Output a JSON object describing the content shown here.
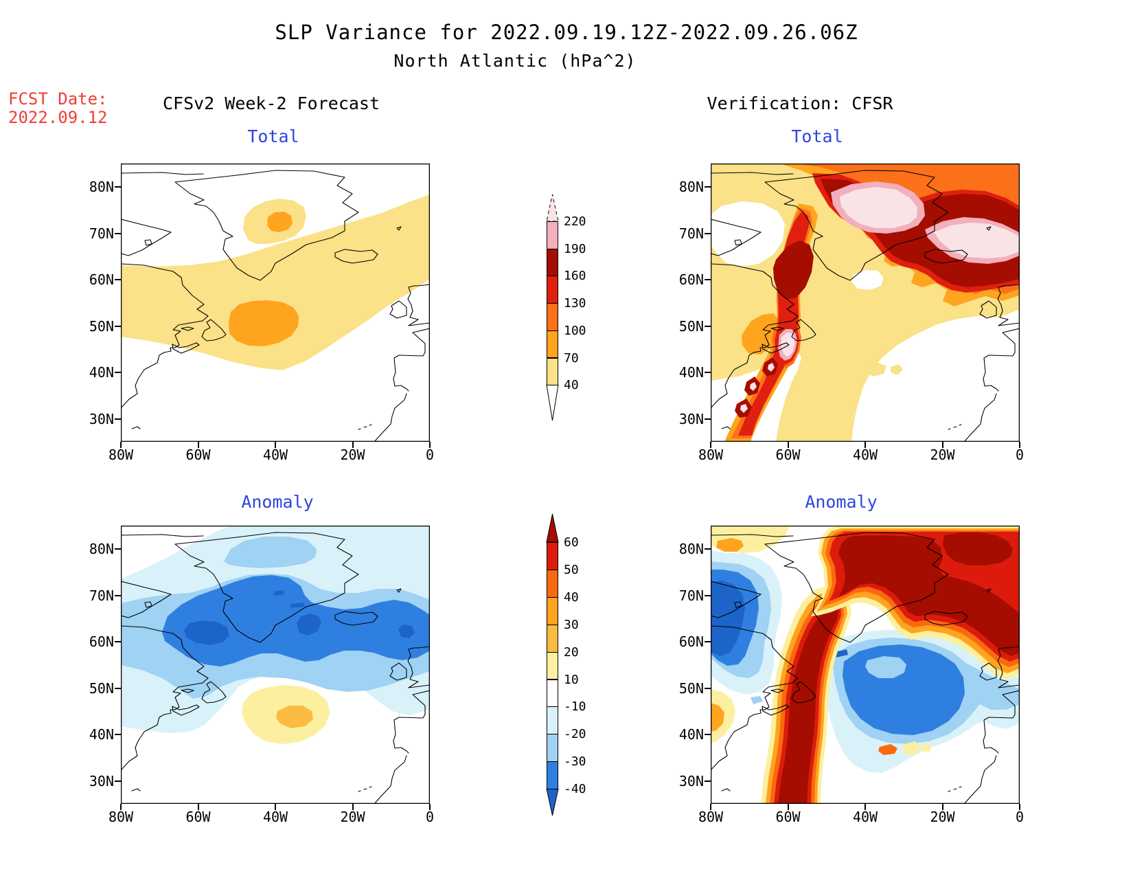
{
  "title": {
    "line1": "SLP Variance for 2022.09.19.12Z-2022.09.26.06Z",
    "line2": "North Atlantic (hPa^2)"
  },
  "fcst_date": {
    "label": "FCST Date:",
    "value": "2022.09.12"
  },
  "columns": {
    "left": "CFSv2 Week-2 Forecast",
    "right": "Verification: CFSR"
  },
  "panels": [
    {
      "id": "forecast-total",
      "title": "Total"
    },
    {
      "id": "verification-total",
      "title": "Total"
    },
    {
      "id": "forecast-anomaly",
      "title": "Anomaly"
    },
    {
      "id": "verification-anomaly",
      "title": "Anomaly"
    }
  ],
  "axes": {
    "lat": [
      "80N",
      "70N",
      "60N",
      "50N",
      "40N",
      "30N"
    ],
    "lon": [
      "80W",
      "60W",
      "40W",
      "20W",
      "0"
    ]
  },
  "colorbars": {
    "total": {
      "tick_labels": [
        "220",
        "190",
        "160",
        "130",
        "100",
        "70",
        "40"
      ],
      "segment_colors": [
        "#F2AFBC",
        "#A50D00",
        "#E01F0E",
        "#FB7019",
        "#FFA41E",
        "#FBE187"
      ],
      "above_color": "#FAE3E7",
      "below_color": "#FFFFFF"
    },
    "anomaly": {
      "tick_labels": [
        "60",
        "50",
        "40",
        "30",
        "20",
        "10",
        "-10",
        "-20",
        "-30",
        "-40"
      ],
      "segment_colors": [
        "#DD1B0D",
        "#F96A10",
        "#FFA41E",
        "#FBBA42",
        "#FCF0A0",
        "#FFFFFF",
        "#D9F2FA",
        "#9FD2F3",
        "#2F7FE0"
      ],
      "above_color": "#A50D00",
      "below_color": "#1D64C8"
    }
  },
  "palette": {
    "css": {
      "red": "#F03C34",
      "blue": "#2E44E0",
      "c40": "#FBE187",
      "c70": "#FFA41E",
      "c100": "#FB7019",
      "c130": "#E01F0E",
      "c160": "#A50D00",
      "c190": "#F2AFBC",
      "c220": "#FAE3E7",
      "a10": "#FCF0A0",
      "a20": "#FBBA42",
      "a30": "#FFA41E",
      "a40": "#F96A10",
      "a50": "#DD1B0D",
      "a60": "#A50D00",
      "b10": "#D9F2FA",
      "b20": "#9FD2F3",
      "b30": "#2F7FE0",
      "b40": "#1D64C8"
    }
  },
  "chart_data": {
    "type": "heatmap",
    "subtype": "filled-contour-maps",
    "variable": "Sea-level pressure variance",
    "units": "hPa^2",
    "period": "2022.09.19.12Z - 2022.09.26.06Z",
    "region": "North Atlantic",
    "forecast_initialized": "2022.09.12",
    "lon_range_deg_west": [
      80,
      0
    ],
    "lat_range_deg_north": [
      25,
      85
    ],
    "total_contour_levels": [
      40,
      70,
      100,
      130,
      160,
      190,
      220
    ],
    "anomaly_contour_levels": [
      -40,
      -30,
      -20,
      -10,
      10,
      20,
      30,
      40,
      50,
      60
    ],
    "panels": [
      {
        "id": "forecast-total",
        "title": "Total",
        "source": "CFSv2 Week-2 Forecast",
        "max_band_hpa2": "70-100",
        "features": [
          {
            "desc": "broad 40-70 band across the central Atlantic from Newfoundland toward the British Isles",
            "approx": "40-63N"
          },
          {
            "desc": "70-100 core southeast of Newfoundland",
            "approx": "48-53N, 38-50W"
          },
          {
            "desc": "isolated 40-100 spot over central Greenland",
            "approx": "71-77N, 33-47W"
          }
        ]
      },
      {
        "id": "verification-total",
        "title": "Total",
        "source": "CFSR",
        "max_band_hpa2": ">220",
        "features": [
          {
            "desc": ">220 maxima over the Greenland Sea and from Iceland to the Norwegian Sea",
            "approx": "63-76N, 0-40W"
          },
          {
            "desc": "160-190 swath through Davis Strait and the Labrador Sea",
            "approx": "50-70N, 55-62W"
          },
          {
            "desc": "190-220 spot over the Gulf of St. Lawrence / Nova Scotia",
            "approx": "42-49N, 58-63W"
          },
          {
            "desc": "narrow 130->220 storm track running northeast from 27N 70W (hurricane track)",
            "approx": "27-45N"
          },
          {
            "desc": "40-70 background over most of the basin north of ~40N"
          }
        ]
      },
      {
        "id": "forecast-anomaly",
        "title": "Anomaly",
        "source": "CFSv2 Week-2 Forecast minus climatology",
        "extreme_band_hpa2": "< -40",
        "features": [
          {
            "desc": "negative anomalies (-10 to < -40) spanning 55-82N from Baffin Island to the Norwegian Sea"
          },
          {
            "desc": "strongest cores < -40 over the Labrador Sea, Denmark Strait and east of Iceland",
            "approx": "58-65N"
          },
          {
            "desc": "weak positive 10-30 spot in the central Atlantic",
            "approx": "41-48N, 33-50W"
          }
        ]
      },
      {
        "id": "verification-anomaly",
        "title": "Anomaly",
        "source": "CFSR minus climatology",
        "extreme_band_hpa2": "> 60 and < -40",
        "features": [
          {
            "desc": "> 60 positive anomaly covering Greenland, Greenland Sea and Iceland-Norwegian Sea",
            "approx": "60-83N"
          },
          {
            "desc": "> 60 positive track from 27N 70W northeast through Nova Scotia and Labrador"
          },
          {
            "desc": "< -40 negative core over Baffin Island",
            "approx": "60-75N, 60-80W"
          },
          {
            "desc": "< -40 negative region over central North Atlantic",
            "approx": "42-60N, 5-45W"
          },
          {
            "desc": "small positive spots near 40N 33-38W and off New England"
          }
        ]
      }
    ]
  }
}
